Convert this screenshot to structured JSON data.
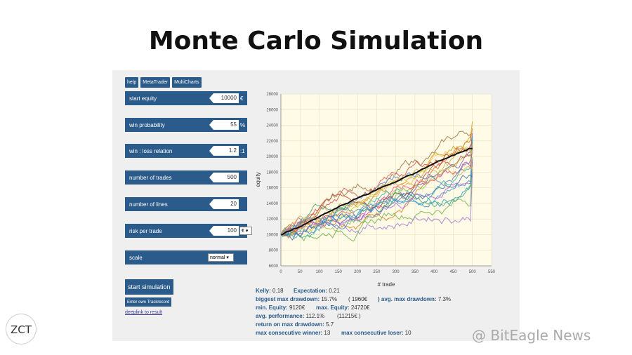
{
  "title": "Monte Carlo Simulation",
  "toolbar": {
    "help": "help",
    "metatrader": "MetaTrader",
    "multicharts": "MultiCharts"
  },
  "params": {
    "start_equity": {
      "label": "start equity",
      "value": "10000",
      "unit": "€"
    },
    "win_probability": {
      "label": "win probability",
      "value": "55",
      "unit": "%"
    },
    "win_loss": {
      "label": "win : loss relation",
      "value": "1.2",
      "unit": ":1"
    },
    "num_trades": {
      "label": "number of trades",
      "value": "500"
    },
    "num_lines": {
      "label": "number of lines",
      "value": "20"
    },
    "risk": {
      "label": "risk per trade",
      "value": "100",
      "unit": "€"
    },
    "scale": {
      "label": "scale",
      "value": "normal"
    }
  },
  "actions": {
    "start": "start simulation",
    "track": "Enter own Trackrecord",
    "deeplink": "deeplink to result"
  },
  "chart_data": {
    "type": "line",
    "xlabel": "# trade",
    "ylabel": "equity",
    "xlim": [
      0,
      550
    ],
    "ylim": [
      6000,
      28000
    ],
    "xticks": [
      0,
      50,
      100,
      150,
      200,
      250,
      300,
      350,
      400,
      450,
      500,
      550
    ],
    "yticks": [
      6000,
      8000,
      10000,
      12000,
      14000,
      16000,
      18000,
      20000,
      22000,
      24000,
      26000,
      28000
    ],
    "grid": true,
    "series_count": 20,
    "series_ends": [
      24500,
      23600,
      23000,
      22600,
      22200,
      21800,
      21500,
      21200,
      20900,
      20500,
      20200,
      19900,
      19600,
      19300,
      19000,
      18700,
      18400,
      18100,
      17800,
      17400
    ],
    "mean_end": 21000,
    "colors": [
      "#d4a017",
      "#e07b20",
      "#7b5cc4",
      "#3a8fd8",
      "#2bb3a0",
      "#c0392b",
      "#8bc34a",
      "#e84d8a",
      "#9c6f3f",
      "#5a7ec2",
      "#f0c040",
      "#6ab04c",
      "#b55fd1",
      "#1f9fbf",
      "#e0a85a",
      "#d65050",
      "#4c9f70",
      "#a07ad0",
      "#c7b05a",
      "#3b6fb0"
    ]
  },
  "stats": {
    "kelly": {
      "label": "Kelly:",
      "value": "0.18"
    },
    "expectation": {
      "label": "Expectation:",
      "value": "0.21"
    },
    "biggest_dd": {
      "label": "biggest max drawdown:",
      "value": "15.7%"
    },
    "biggest_dd_abs": "( 1960€",
    "avg_dd": {
      "label": ") avg. max drawdown:",
      "value": "7.3%"
    },
    "min_equity": {
      "label": "min. Equity:",
      "value": "9120€"
    },
    "max_equity": {
      "label": "max. Equity:",
      "value": "24720€"
    },
    "avg_perf": {
      "label": "avg. performance:",
      "value": "112.1%"
    },
    "avg_perf_abs": "(11215€ )",
    "return_dd": {
      "label": "return on max drawdown:",
      "value": "5.7"
    },
    "max_winner": {
      "label": "max consecutive winner:",
      "value": "13"
    },
    "max_loser": {
      "label": "max consecutive loser:",
      "value": "10"
    }
  },
  "branding": {
    "logo": "ZCT",
    "watermark": "@ BitEagle News"
  }
}
